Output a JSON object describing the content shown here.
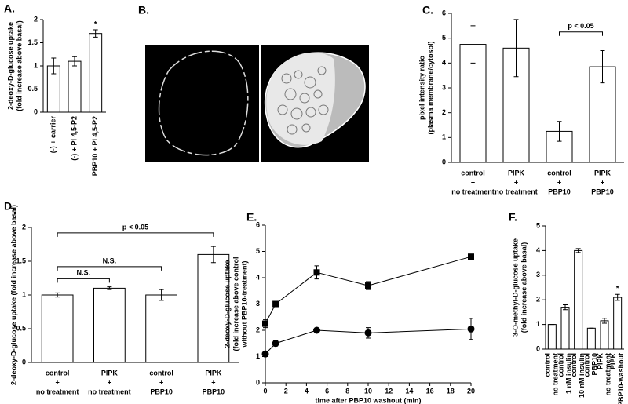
{
  "panel_b": {
    "label": "B."
  },
  "chart_data": [
    {
      "type": "bar",
      "panel": "A.",
      "ylabel": [
        "2-deoxy-D-glucose uptake",
        "(fold increase above basal)"
      ],
      "categories": [
        "(-)  +  carrier",
        "(-)  + PI 4,5-P2",
        "PBP10  + PI 4,5-P2"
      ],
      "values": [
        1.0,
        1.1,
        1.7
      ],
      "errors": [
        0.17,
        0.1,
        0.08
      ],
      "ylim": [
        0,
        2
      ],
      "yticks": [
        0,
        0.5,
        1,
        1.5,
        2
      ],
      "annotation": "*",
      "color": "#ffffff"
    },
    {
      "type": "bar",
      "panel": "C.",
      "ylabel": [
        "pixel intensity ratio",
        "(plasma membrane/cytosol)"
      ],
      "categories": [
        [
          "control",
          "+",
          "no treatment"
        ],
        [
          "PIPK",
          "+",
          "no treatment"
        ],
        [
          "control",
          "+",
          "PBP10"
        ],
        [
          "PIPK",
          "+",
          "PBP10"
        ]
      ],
      "values": [
        4.75,
        4.6,
        1.25,
        3.85
      ],
      "errors": [
        0.75,
        1.15,
        0.4,
        0.65
      ],
      "ylim": [
        0,
        6
      ],
      "yticks": [
        0,
        1,
        2,
        3,
        4,
        5,
        6
      ],
      "brackets": [
        "p < 0.05"
      ],
      "color": "#ffffff"
    },
    {
      "type": "bar",
      "panel": "D.",
      "ylabel": [
        "2-deoxy-D-glucose uptake (fold increase above basal)"
      ],
      "categories": [
        [
          "control",
          "+",
          "no treatment"
        ],
        [
          "PIPK",
          "+",
          "no treatment"
        ],
        [
          "control",
          "+",
          "PBP10"
        ],
        [
          "PIPK",
          "+",
          "PBP10"
        ]
      ],
      "values": [
        1.0,
        1.1,
        1.0,
        1.6
      ],
      "errors": [
        0.03,
        0.02,
        0.08,
        0.12
      ],
      "ylim": [
        0,
        2
      ],
      "yticks": [
        0,
        0.5,
        1,
        1.5,
        2
      ],
      "brackets": [
        "p < 0.05",
        "N.S.",
        "N.S."
      ],
      "color": "#ffffff"
    },
    {
      "type": "line",
      "panel": "E.",
      "ylabel": [
        "2-deoxy-D-glucose uptake",
        "(fold increase above control",
        "without PBP10-treatment)"
      ],
      "xlabel": "time after PBP10 washout (min)",
      "x": [
        0,
        1,
        5,
        10,
        20
      ],
      "series": [
        {
          "marker": "square",
          "color": "#000000",
          "values": [
            2.25,
            3.0,
            4.2,
            3.7,
            4.8
          ],
          "errors": [
            0.15,
            0.1,
            0.25,
            0.15,
            0.05
          ]
        },
        {
          "marker": "circle",
          "color": "#000000",
          "values": [
            1.1,
            1.5,
            2.0,
            1.9,
            2.05
          ],
          "errors": [
            0.1,
            0.1,
            0.05,
            0.2,
            0.4
          ]
        }
      ],
      "xlim": [
        0,
        20
      ],
      "xticks": [
        0,
        2,
        4,
        6,
        8,
        10,
        12,
        14,
        16,
        18,
        20
      ],
      "ylim": [
        0,
        6
      ],
      "yticks": [
        0,
        1,
        2,
        3,
        4,
        5,
        6
      ]
    },
    {
      "type": "bar",
      "panel": "F.",
      "ylabel": [
        "3-O-methyl-D-glucose uptake",
        "(fold increase above basal)"
      ],
      "categories": [
        [
          "control",
          "no treatment"
        ],
        [
          "control",
          "1 nM insulin"
        ],
        [
          "control",
          "10 nM insulin"
        ],
        [
          "control",
          "PBP10"
        ],
        [
          "PIPK",
          "no treatment"
        ],
        [
          "PIPK",
          "PBP10-washout"
        ]
      ],
      "values": [
        1.0,
        1.7,
        4.0,
        0.85,
        1.15,
        2.1
      ],
      "errors": [
        0,
        0.1,
        0.08,
        0,
        0.1,
        0.12
      ],
      "ylim": [
        0,
        5
      ],
      "yticks": [
        0,
        1,
        2,
        3,
        4,
        5
      ],
      "annotation": "*",
      "color": "#ffffff"
    }
  ]
}
